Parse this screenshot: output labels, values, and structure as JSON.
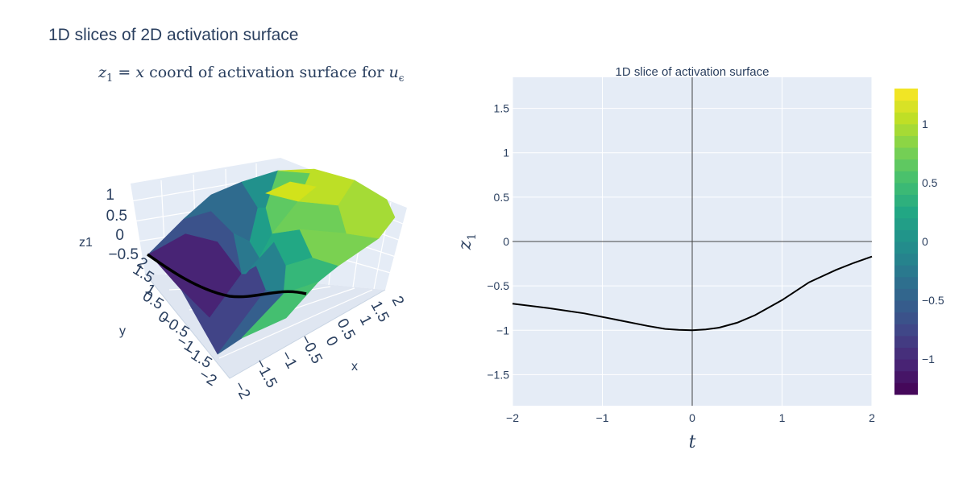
{
  "figure_title": "1D slices of 2D activation surface",
  "colors": {
    "plot_bg": "#e5ecf6",
    "text": "#2a3f5f",
    "line": "#000000",
    "viridis": [
      "#440154",
      "#482475",
      "#414487",
      "#355f8d",
      "#2a788e",
      "#21918c",
      "#22a884",
      "#44bf70",
      "#7ad151",
      "#bddf26",
      "#fde725"
    ]
  },
  "chart_data": [
    {
      "type": "surface3d",
      "title": "z₁ = x coord of activation surface for uε",
      "title_parts": {
        "lhs": "z",
        "lhs_sub": "1",
        "eq": "=",
        "var_x": "x",
        "text": "coord of activation surface for",
        "var_u": "u",
        "u_sub": "ϵ"
      },
      "axes": {
        "x": {
          "label": "x",
          "ticks": [
            "−2",
            "−1.5",
            "−1",
            "−0.5",
            "0",
            "0.5",
            "1",
            "1.5",
            "2"
          ]
        },
        "y": {
          "label": "y",
          "ticks": [
            "−2",
            "−1.5",
            "−1",
            "−0.5",
            "0",
            "0.5",
            "1",
            "1.5",
            "2"
          ]
        },
        "z": {
          "label": "z1",
          "ticks": [
            "−0.5",
            "0",
            "0.5",
            "1"
          ]
        }
      },
      "slice_curve_color": "#000000"
    },
    {
      "type": "line",
      "title": "1D slice of activation surface",
      "xlabel": "t",
      "ylabel": "z",
      "ylabel_sub": "1",
      "xlim": [
        -2,
        2
      ],
      "ylim": [
        -1.85,
        1.85
      ],
      "xticks": [
        -2,
        -1,
        0,
        1,
        2
      ],
      "yticks": [
        -1.5,
        -1,
        -0.5,
        0,
        0.5,
        1,
        1.5
      ],
      "series": [
        {
          "x": [
            -2,
            -1.6,
            -1.2,
            -0.8,
            -0.5,
            -0.3,
            -0.15,
            0,
            0.15,
            0.3,
            0.5,
            0.7,
            1.0,
            1.3,
            1.6,
            1.8,
            2.0
          ],
          "y": [
            -0.7,
            -0.75,
            -0.81,
            -0.89,
            -0.95,
            -0.985,
            -0.995,
            -1.0,
            -0.99,
            -0.97,
            -0.915,
            -0.83,
            -0.66,
            -0.46,
            -0.32,
            -0.24,
            -0.17
          ]
        }
      ]
    },
    {
      "type": "colorbar",
      "range": [
        -1.3,
        1.3
      ],
      "ticks": [
        1,
        0.5,
        0,
        -0.5,
        -1
      ],
      "tick_labels": [
        "1",
        "0.5",
        "0",
        "−0.5",
        "−1"
      ]
    }
  ]
}
